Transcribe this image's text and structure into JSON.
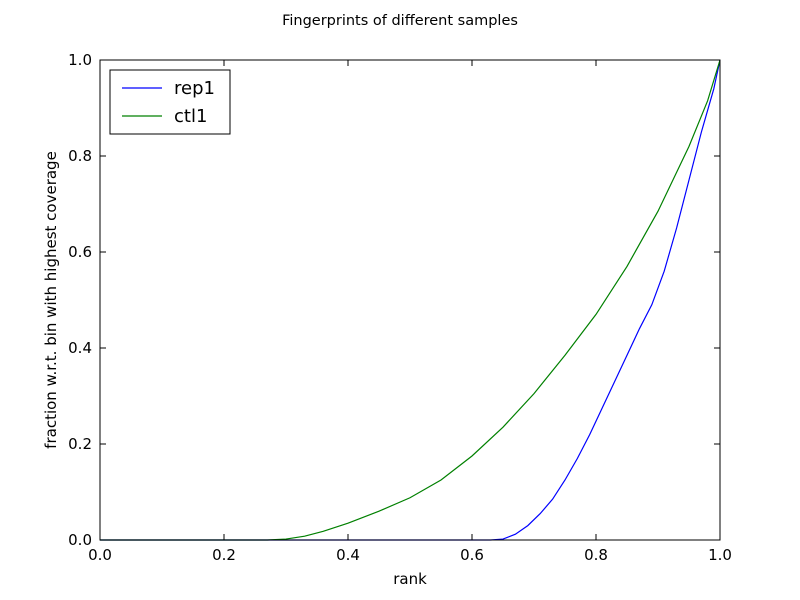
{
  "chart_data": {
    "type": "line",
    "title": "Fingerprints of different samples",
    "xlabel": "rank",
    "ylabel": "fraction w.r.t. bin with highest coverage",
    "xlim": [
      0.0,
      1.0
    ],
    "ylim": [
      0.0,
      1.0
    ],
    "xticks": [
      "0.0",
      "0.2",
      "0.4",
      "0.6",
      "0.8",
      "1.0"
    ],
    "yticks": [
      "0.0",
      "0.2",
      "0.4",
      "0.6",
      "0.8",
      "1.0"
    ],
    "grid": false,
    "legend_position": "top-left",
    "series": [
      {
        "name": "rep1",
        "color": "#0000ff",
        "points": [
          [
            0.0,
            0.0
          ],
          [
            0.1,
            0.0
          ],
          [
            0.2,
            0.0
          ],
          [
            0.3,
            0.0
          ],
          [
            0.4,
            0.0
          ],
          [
            0.5,
            0.0
          ],
          [
            0.6,
            0.0
          ],
          [
            0.63,
            0.0
          ],
          [
            0.65,
            0.002
          ],
          [
            0.67,
            0.012
          ],
          [
            0.69,
            0.03
          ],
          [
            0.71,
            0.055
          ],
          [
            0.73,
            0.085
          ],
          [
            0.75,
            0.125
          ],
          [
            0.77,
            0.17
          ],
          [
            0.79,
            0.22
          ],
          [
            0.81,
            0.275
          ],
          [
            0.83,
            0.33
          ],
          [
            0.85,
            0.385
          ],
          [
            0.87,
            0.44
          ],
          [
            0.89,
            0.49
          ],
          [
            0.91,
            0.56
          ],
          [
            0.93,
            0.65
          ],
          [
            0.95,
            0.75
          ],
          [
            0.97,
            0.85
          ],
          [
            0.99,
            0.94
          ],
          [
            1.0,
            1.0
          ]
        ]
      },
      {
        "name": "ctl1",
        "color": "#008000",
        "points": [
          [
            0.0,
            0.0
          ],
          [
            0.1,
            0.0
          ],
          [
            0.2,
            0.0
          ],
          [
            0.27,
            0.0
          ],
          [
            0.3,
            0.002
          ],
          [
            0.33,
            0.008
          ],
          [
            0.36,
            0.018
          ],
          [
            0.4,
            0.035
          ],
          [
            0.45,
            0.06
          ],
          [
            0.5,
            0.088
          ],
          [
            0.55,
            0.125
          ],
          [
            0.6,
            0.175
          ],
          [
            0.65,
            0.235
          ],
          [
            0.7,
            0.305
          ],
          [
            0.75,
            0.385
          ],
          [
            0.8,
            0.47
          ],
          [
            0.85,
            0.57
          ],
          [
            0.9,
            0.685
          ],
          [
            0.95,
            0.82
          ],
          [
            0.98,
            0.915
          ],
          [
            1.0,
            1.0
          ]
        ]
      }
    ]
  }
}
